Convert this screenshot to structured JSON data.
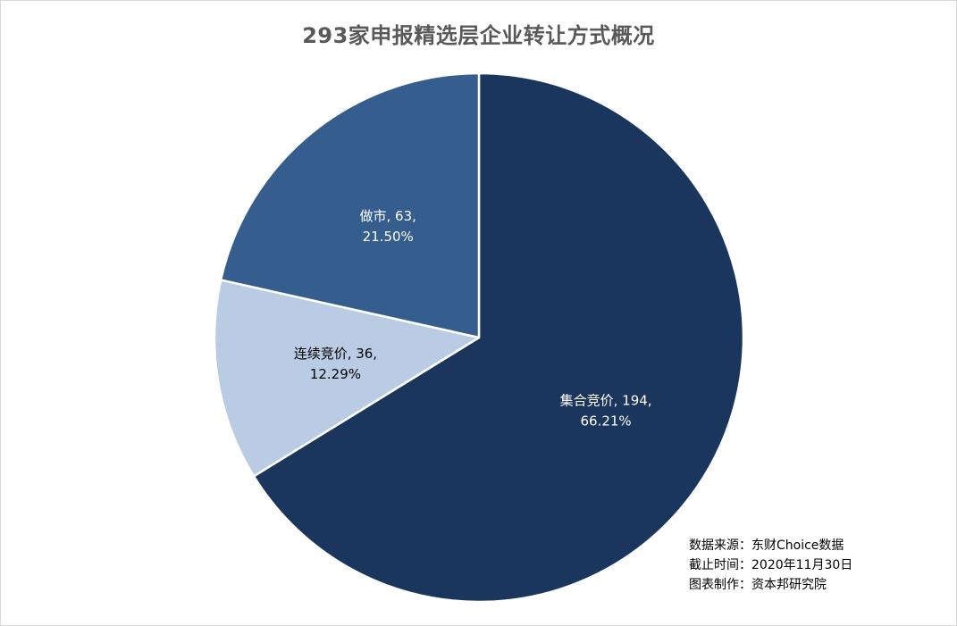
{
  "chart_data": {
    "type": "pie",
    "title": "293家申报精选层企业转让方式概况",
    "slices": [
      {
        "name": "集合竞价",
        "value": 194,
        "percent": "66.21%",
        "color": "#1b365d",
        "label_color": "#ffffff"
      },
      {
        "name": "连续竞价",
        "value": 36,
        "percent": "12.29%",
        "color": "#b9cce4",
        "label_color": "#000000"
      },
      {
        "name": "做市",
        "value": 63,
        "percent": "21.50%",
        "color": "#355e8f",
        "label_color": "#ffffff"
      }
    ],
    "start_angle_deg": 0,
    "direction": "clockwise",
    "legend": "none"
  },
  "notes": {
    "source": "数据来源：东财Choice数据",
    "date": "截止时间：2020年11月30日",
    "author": "图表制作：资本邦研究院"
  }
}
